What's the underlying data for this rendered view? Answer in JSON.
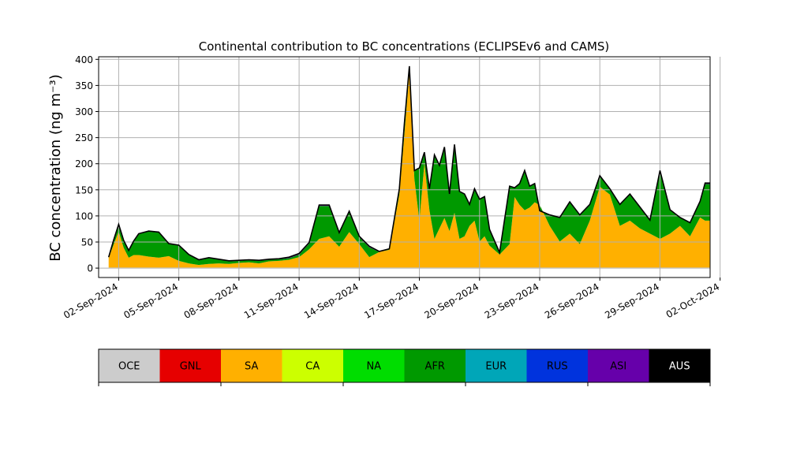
{
  "chart_data": {
    "type": "area",
    "stacked": true,
    "title": "Continental contribution to BC concentrations (ECLIPSEv6 and CAMS)",
    "ylabel": "BC concentration (ng m⁻³)",
    "xlabel": "",
    "ylim": [
      -18,
      405
    ],
    "xlim": [
      "2024-09-01T00:00",
      "2024-10-01T12:00"
    ],
    "yticks": [
      0,
      50,
      100,
      150,
      200,
      250,
      300,
      350,
      400
    ],
    "xticks": [
      "02-Sep-2024",
      "05-Sep-2024",
      "08-Sep-2024",
      "11-Sep-2024",
      "14-Sep-2024",
      "17-Sep-2024",
      "20-Sep-2024",
      "23-Sep-2024",
      "26-Sep-2024",
      "29-Sep-2024",
      "02-Oct-2024"
    ],
    "grid": true,
    "x": [
      "2024-09-01T12:00",
      "2024-09-01T18:00",
      "2024-09-02T00:00",
      "2024-09-02T06:00",
      "2024-09-02T12:00",
      "2024-09-02T18:00",
      "2024-09-03T00:00",
      "2024-09-03T12:00",
      "2024-09-04T00:00",
      "2024-09-04T12:00",
      "2024-09-05T00:00",
      "2024-09-05T12:00",
      "2024-09-06T00:00",
      "2024-09-06T12:00",
      "2024-09-07T00:00",
      "2024-09-07T12:00",
      "2024-09-08T00:00",
      "2024-09-08T12:00",
      "2024-09-09T00:00",
      "2024-09-09T12:00",
      "2024-09-10T00:00",
      "2024-09-10T12:00",
      "2024-09-11T00:00",
      "2024-09-11T12:00",
      "2024-09-12T00:00",
      "2024-09-12T12:00",
      "2024-09-13T00:00",
      "2024-09-13T12:00",
      "2024-09-14T00:00",
      "2024-09-14T12:00",
      "2024-09-15T00:00",
      "2024-09-15T12:00",
      "2024-09-16T00:00",
      "2024-09-16T06:00",
      "2024-09-16T12:00",
      "2024-09-16T18:00",
      "2024-09-17T00:00",
      "2024-09-17T06:00",
      "2024-09-17T12:00",
      "2024-09-17T18:00",
      "2024-09-18T00:00",
      "2024-09-18T06:00",
      "2024-09-18T12:00",
      "2024-09-18T18:00",
      "2024-09-19T00:00",
      "2024-09-19T06:00",
      "2024-09-19T12:00",
      "2024-09-19T18:00",
      "2024-09-20T00:00",
      "2024-09-20T06:00",
      "2024-09-20T12:00",
      "2024-09-21T00:00",
      "2024-09-21T12:00",
      "2024-09-21T18:00",
      "2024-09-22T00:00",
      "2024-09-22T06:00",
      "2024-09-22T12:00",
      "2024-09-22T18:00",
      "2024-09-23T00:00",
      "2024-09-23T12:00",
      "2024-09-24T00:00",
      "2024-09-24T12:00",
      "2024-09-25T00:00",
      "2024-09-25T12:00",
      "2024-09-26T00:00",
      "2024-09-26T12:00",
      "2024-09-27T00:00",
      "2024-09-27T12:00",
      "2024-09-28T00:00",
      "2024-09-28T12:00",
      "2024-09-29T00:00",
      "2024-09-29T12:00",
      "2024-09-30T00:00",
      "2024-09-30T12:00",
      "2024-10-01T00:00",
      "2024-10-01T06:00",
      "2024-10-01T12:00"
    ],
    "series": [
      {
        "name": "OCE",
        "color": "#cccccc",
        "values": [
          1,
          1,
          1,
          1,
          1,
          1,
          1,
          1,
          1,
          1,
          1,
          1,
          1,
          1,
          1,
          1,
          1,
          1,
          1,
          1,
          1,
          1,
          1,
          1,
          1,
          1,
          1,
          1,
          1,
          1,
          1,
          1,
          1,
          1,
          1,
          1,
          1,
          1,
          1,
          1,
          1,
          1,
          1,
          1,
          1,
          1,
          1,
          1,
          1,
          1,
          1,
          1,
          1,
          1,
          1,
          1,
          1,
          1,
          1,
          1,
          1,
          1,
          1,
          1,
          1,
          1,
          1,
          1,
          1,
          1,
          1,
          1,
          1,
          1,
          1,
          1,
          1
        ]
      },
      {
        "name": "GNL",
        "color": "#e60000",
        "values": [
          0,
          0,
          0,
          0,
          0,
          0,
          0,
          0,
          0,
          0,
          0,
          0,
          0,
          0,
          0,
          0,
          0,
          0,
          0,
          0,
          0,
          0,
          0,
          0,
          0,
          0,
          0,
          0,
          0,
          0,
          0,
          0,
          0,
          0,
          0,
          0,
          0,
          0,
          0,
          0,
          0,
          0,
          0,
          0,
          0,
          0,
          0,
          0,
          0,
          0,
          0,
          0,
          0,
          0,
          0,
          0,
          0,
          0,
          0,
          0,
          0,
          0,
          0,
          0,
          0,
          0,
          0,
          0,
          0,
          0,
          0,
          0,
          0,
          0,
          0,
          0,
          0
        ]
      },
      {
        "name": "SA",
        "color": "#ffb000",
        "values": [
          19,
          44,
          69,
          38,
          19,
          24,
          24,
          21,
          19,
          22,
          13,
          8,
          5,
          7,
          8,
          7,
          9,
          10,
          8,
          12,
          13,
          15,
          20,
          35,
          55,
          60,
          40,
          68,
          45,
          20,
          30,
          34,
          140,
          255,
          375,
          170,
          90,
          200,
          110,
          55,
          75,
          95,
          70,
          105,
          55,
          60,
          80,
          90,
          50,
          60,
          42,
          25,
          45,
          135,
          120,
          110,
          115,
          125,
          120,
          80,
          50,
          65,
          45,
          90,
          155,
          140,
          80,
          90,
          75,
          65,
          55,
          65,
          80,
          60,
          96,
          90,
          90
        ]
      },
      {
        "name": "CA",
        "color": "#ccff00",
        "values": [
          0,
          0,
          0,
          0,
          0,
          0,
          0,
          0,
          0,
          0,
          0,
          0,
          0,
          0,
          0,
          0,
          0,
          0,
          0,
          0,
          0,
          0,
          0,
          0,
          0,
          0,
          0,
          0,
          0,
          0,
          0,
          0,
          0,
          0,
          0,
          0,
          0,
          0,
          0,
          0,
          0,
          0,
          0,
          0,
          0,
          0,
          0,
          0,
          0,
          0,
          0,
          0,
          0,
          0,
          0,
          0,
          0,
          0,
          0,
          0,
          0,
          0,
          0,
          0,
          0,
          0,
          0,
          0,
          0,
          0,
          0,
          0,
          0,
          0,
          0,
          0,
          0
        ]
      },
      {
        "name": "NA",
        "color": "#00dd00",
        "values": [
          0,
          0,
          0,
          0,
          0,
          0,
          0,
          0,
          0,
          0,
          0,
          0,
          0,
          0,
          0,
          0,
          0,
          0,
          0,
          0,
          0,
          0,
          0,
          0,
          0,
          0,
          0,
          0,
          0,
          0,
          0,
          0,
          0,
          0,
          0,
          0,
          0,
          0,
          0,
          0,
          0,
          0,
          0,
          0,
          0,
          0,
          0,
          0,
          0,
          0,
          0,
          0,
          0,
          0,
          0,
          0,
          0,
          0,
          0,
          0,
          0,
          0,
          0,
          0,
          0,
          0,
          0,
          0,
          0,
          0,
          0,
          0,
          0,
          0,
          0,
          0,
          0
        ]
      },
      {
        "name": "AFR",
        "color": "#009900",
        "values": [
          1,
          8,
          13,
          13,
          13,
          26,
          40,
          48,
          48,
          23,
          29,
          16,
          9,
          11,
          7,
          5,
          4,
          4,
          5,
          3,
          3,
          3,
          5,
          11,
          63,
          58,
          25,
          38,
          13,
          19,
          0,
          1,
          10,
          20,
          10,
          15,
          100,
          20,
          40,
          160,
          120,
          135,
          70,
          130,
          90,
          80,
          40,
          60,
          80,
          75,
          30,
          3,
          110,
          17,
          40,
          75,
          40,
          35,
          -12,
          20,
          45,
          60,
          55,
          30,
          20,
          10,
          40,
          50,
          40,
          25,
          130,
          45,
          15,
          25,
          30,
          70,
          70
        ]
      },
      {
        "name": "EUR",
        "color": "#00a6b8",
        "values": [
          0,
          0,
          0,
          0,
          0,
          0,
          0,
          0,
          0,
          0,
          0,
          0,
          0,
          0,
          0,
          0,
          0,
          0,
          0,
          0,
          0,
          0,
          0,
          0,
          0,
          0,
          0,
          0,
          0,
          0,
          0,
          0,
          0,
          0,
          0,
          0,
          0,
          0,
          0,
          0,
          0,
          0,
          0,
          0,
          0,
          0,
          0,
          0,
          0,
          0,
          0,
          0,
          0,
          0,
          0,
          0,
          0,
          0,
          0,
          0,
          0,
          0,
          0,
          0,
          0,
          0,
          0,
          0,
          0,
          0,
          0,
          0,
          0,
          0,
          0,
          0,
          0
        ]
      },
      {
        "name": "RUS",
        "color": "#0033dd",
        "values": [
          0,
          0,
          0,
          0,
          0,
          0,
          0,
          0,
          0,
          0,
          0,
          0,
          0,
          0,
          0,
          0,
          0,
          0,
          0,
          0,
          0,
          0,
          0,
          0,
          0,
          0,
          0,
          0,
          0,
          0,
          0,
          0,
          0,
          0,
          0,
          0,
          0,
          0,
          0,
          0,
          0,
          0,
          0,
          0,
          0,
          0,
          0,
          0,
          0,
          0,
          0,
          0,
          0,
          0,
          0,
          0,
          0,
          0,
          0,
          0,
          0,
          0,
          0,
          0,
          0,
          0,
          0,
          0,
          0,
          0,
          0,
          0,
          0,
          0,
          0,
          0,
          0
        ]
      },
      {
        "name": "ASI",
        "color": "#6600aa",
        "values": [
          0,
          1,
          1,
          1,
          1,
          1,
          1,
          1,
          1,
          1,
          1,
          1,
          1,
          1,
          1,
          1,
          1,
          1,
          1,
          1,
          1,
          2,
          2,
          2,
          2,
          2,
          2,
          2,
          2,
          2,
          1,
          1,
          1,
          1,
          1,
          1,
          1,
          1,
          1,
          1,
          1,
          1,
          1,
          1,
          1,
          1,
          1,
          1,
          1,
          1,
          1,
          1,
          1,
          1,
          1,
          1,
          1,
          1,
          1,
          1,
          1,
          1,
          1,
          1,
          1,
          1,
          1,
          1,
          1,
          1,
          1,
          1,
          1,
          1,
          1,
          1,
          1
        ]
      },
      {
        "name": "AUS",
        "color": "#000000",
        "values": [
          0,
          0,
          0,
          0,
          0,
          0,
          0,
          0,
          0,
          0,
          0,
          0,
          0,
          0,
          0,
          0,
          0,
          0,
          0,
          0,
          0,
          0,
          0,
          0,
          0,
          0,
          0,
          0,
          0,
          0,
          0,
          0,
          0,
          0,
          0,
          0,
          0,
          0,
          0,
          0,
          0,
          0,
          0,
          0,
          0,
          0,
          0,
          0,
          0,
          0,
          0,
          0,
          0,
          0,
          0,
          0,
          0,
          0,
          0,
          0,
          0,
          0,
          0,
          0,
          0,
          0,
          0,
          0,
          0,
          0,
          0,
          0,
          0,
          0,
          0,
          1,
          1
        ]
      }
    ],
    "legend_entries": [
      "OCE",
      "GNL",
      "SA",
      "CA",
      "NA",
      "AFR",
      "EUR",
      "RUS",
      "ASI",
      "AUS"
    ],
    "legend_placement": "bottom colorbar",
    "total_line_color": "#000000"
  }
}
